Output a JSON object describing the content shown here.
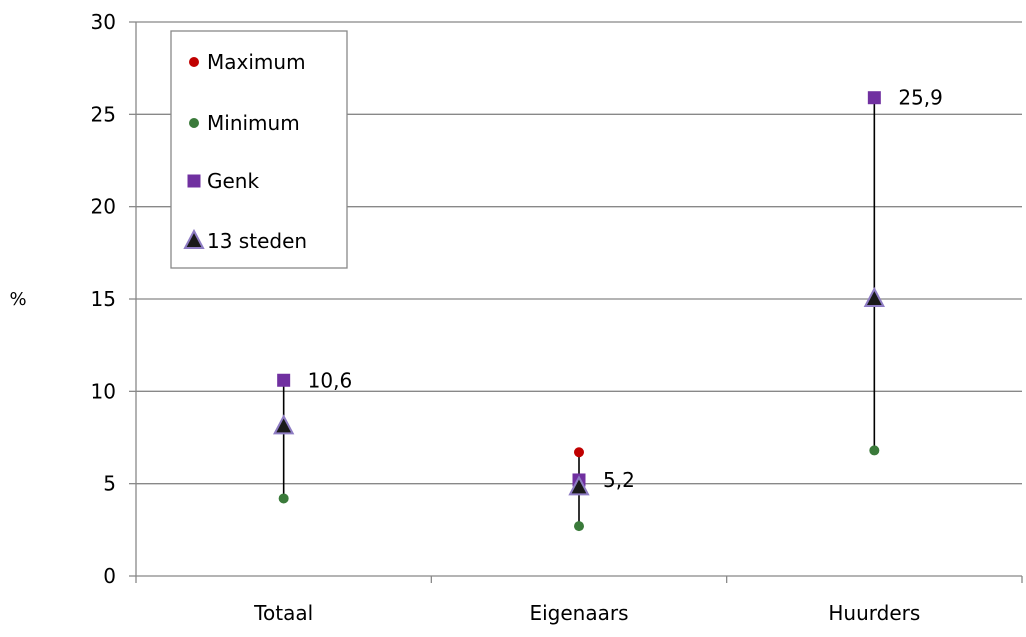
{
  "chart_data": {
    "type": "scatter",
    "ylabel": "%",
    "ylim": [
      0,
      30
    ],
    "yticks": [
      0,
      5,
      10,
      15,
      20,
      25,
      30
    ],
    "grid": true,
    "legend_position": "top-left",
    "categories": [
      "Totaal",
      "Eigenaars",
      "Huurders"
    ],
    "series": [
      {
        "name": "Maximum",
        "marker": "circle",
        "color": "#c00000",
        "values": [
          10.6,
          6.7,
          25.9
        ]
      },
      {
        "name": "Minimum",
        "marker": "circle",
        "color": "#3a7a3a",
        "values": [
          4.2,
          2.7,
          6.8
        ]
      },
      {
        "name": "Genk",
        "marker": "square",
        "color": "#7030a0",
        "values": [
          10.6,
          5.2,
          25.9
        ]
      },
      {
        "name": "13 steden",
        "marker": "triangle",
        "color": "#1a1a1a",
        "values": [
          8.1,
          4.8,
          15.0
        ]
      }
    ],
    "data_labels": [
      "10,6",
      "5,2",
      "25,9"
    ]
  }
}
